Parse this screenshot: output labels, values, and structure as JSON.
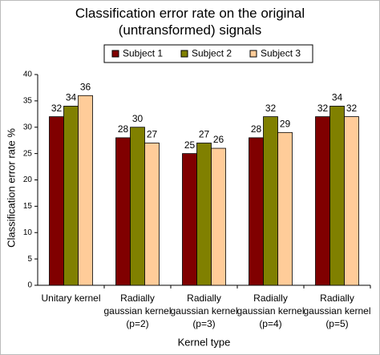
{
  "chart_data": {
    "type": "bar",
    "title": "Classification error rate on the original (untransformed) signals",
    "x_label": "Kernel type",
    "y_label": "Classification error rate %",
    "categories": [
      "Unitary kernel",
      "Radially gaussian kernel (p=2)",
      "Radially gaussian kernel (p=3)",
      "Radially gaussian kernel (p=4)",
      "Radially gaussian kernel (p=5)"
    ],
    "series": [
      {
        "name": "Subject 1",
        "color": "#800000",
        "values": [
          32,
          28,
          25,
          28,
          32
        ]
      },
      {
        "name": "Subject 2",
        "color": "#808000",
        "values": [
          34,
          30,
          27,
          32,
          34
        ]
      },
      {
        "name": "Subject 3",
        "color": "#ffcc99",
        "values": [
          36,
          27,
          26,
          29,
          32
        ]
      }
    ],
    "ylim": [
      0,
      40
    ],
    "yticks": [
      0,
      5,
      10,
      15,
      20,
      25,
      30,
      35,
      40
    ],
    "legend": "top",
    "grid": false
  }
}
